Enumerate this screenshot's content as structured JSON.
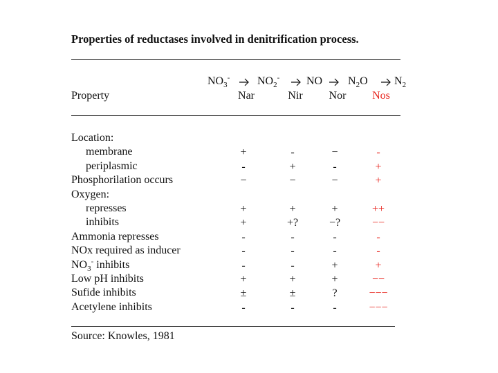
{
  "title": "Properties of reductases involved in denitrification process.",
  "pathway": [
    {
      "base": "NO",
      "sub": "3",
      "sup": "-"
    },
    {
      "base": "NO",
      "sub": "2",
      "sup": "-"
    },
    {
      "base": "NO"
    },
    {
      "base": "N",
      "sub": "2",
      "rest": "O"
    },
    {
      "base": "N",
      "sub": "2"
    }
  ],
  "property_header": "Property",
  "columns": [
    {
      "name": "Nar",
      "color": "#111111"
    },
    {
      "name": "Nir",
      "color": "#111111"
    },
    {
      "name": "Nor",
      "color": "#111111"
    },
    {
      "name": "Nos",
      "color": "#e8231c"
    }
  ],
  "rows": [
    {
      "label": {
        "base": "Location:"
      },
      "indent": false,
      "cells": []
    },
    {
      "label": {
        "base": "membrane"
      },
      "indent": true,
      "cells": [
        "+",
        "-",
        "−",
        "-"
      ]
    },
    {
      "label": {
        "base": "periplasmic"
      },
      "indent": true,
      "cells": [
        "-",
        "+",
        "-",
        "+"
      ]
    },
    {
      "label": {
        "base": "Phosphorilation occurs"
      },
      "indent": false,
      "cells": [
        "−",
        "−",
        "−",
        "+"
      ]
    },
    {
      "label": {
        "base": "Oxygen:"
      },
      "indent": false,
      "cells": []
    },
    {
      "label": {
        "base": "represses"
      },
      "indent": true,
      "cells": [
        "+",
        "+",
        "+",
        "++"
      ]
    },
    {
      "label": {
        "base": "inhibits"
      },
      "indent": true,
      "cells": [
        "+",
        "+?",
        "−?",
        "−−"
      ]
    },
    {
      "label": {
        "base": "Ammonia represses"
      },
      "indent": false,
      "cells": [
        "-",
        "-",
        "-",
        "-"
      ]
    },
    {
      "label": {
        "base": "NOx required as inducer"
      },
      "indent": false,
      "cells": [
        "-",
        "-",
        "-",
        "-"
      ]
    },
    {
      "label": {
        "base": "NO",
        "sub": "3",
        "sup": "-",
        "rest": " inhibits"
      },
      "indent": false,
      "cells": [
        "-",
        "-",
        "+",
        "+"
      ]
    },
    {
      "label": {
        "base": "Low pH inhibits"
      },
      "indent": false,
      "cells": [
        "+",
        "+",
        "+",
        "−−"
      ]
    },
    {
      "label": {
        "base": "Sufide inhibits"
      },
      "indent": false,
      "cells": [
        "±",
        "±",
        "?",
        "−−−"
      ]
    },
    {
      "label": {
        "base": "Acetylene inhibits"
      },
      "indent": false,
      "cells": [
        "-",
        "-",
        "-",
        "−−−"
      ]
    }
  ],
  "source": "Source: Knowles, 1981"
}
